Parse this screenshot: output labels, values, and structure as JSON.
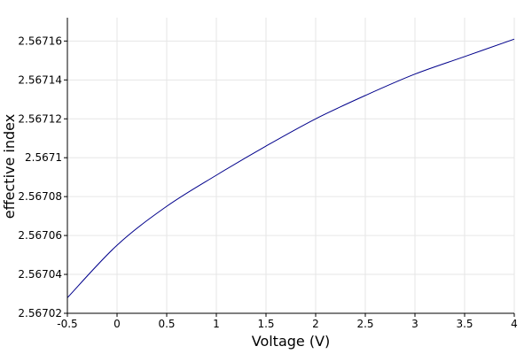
{
  "chart_data": {
    "type": "line",
    "title": "",
    "xlabel": "Voltage (V)",
    "ylabel": "effective index",
    "xlim": [
      -0.5,
      4
    ],
    "ylim": [
      2.56702,
      2.567172
    ],
    "grid": true,
    "x_ticks": [
      -0.5,
      0,
      0.5,
      1,
      1.5,
      2,
      2.5,
      3,
      3.5,
      4
    ],
    "x_tick_labels": [
      "-0.5",
      "0",
      "0.5",
      "1",
      "1.5",
      "2",
      "2.5",
      "3",
      "3.5",
      "4"
    ],
    "y_ticks": [
      2.56702,
      2.56704,
      2.56706,
      2.56708,
      2.5671,
      2.56712,
      2.56714,
      2.56716
    ],
    "y_tick_labels": [
      "2.56702",
      "2.56704",
      "2.56706",
      "2.56708",
      "2.5671",
      "2.56712",
      "2.56714",
      "2.56716"
    ],
    "series": [
      {
        "color": "#00008b",
        "x": [
          -0.5,
          0,
          0.5,
          1,
          1.5,
          2,
          2.5,
          3,
          3.5,
          4
        ],
        "y": [
          2.567028,
          2.567055,
          2.567075,
          2.567091,
          2.567106,
          2.56712,
          2.567132,
          2.567143,
          2.567152,
          2.567161
        ]
      }
    ]
  }
}
